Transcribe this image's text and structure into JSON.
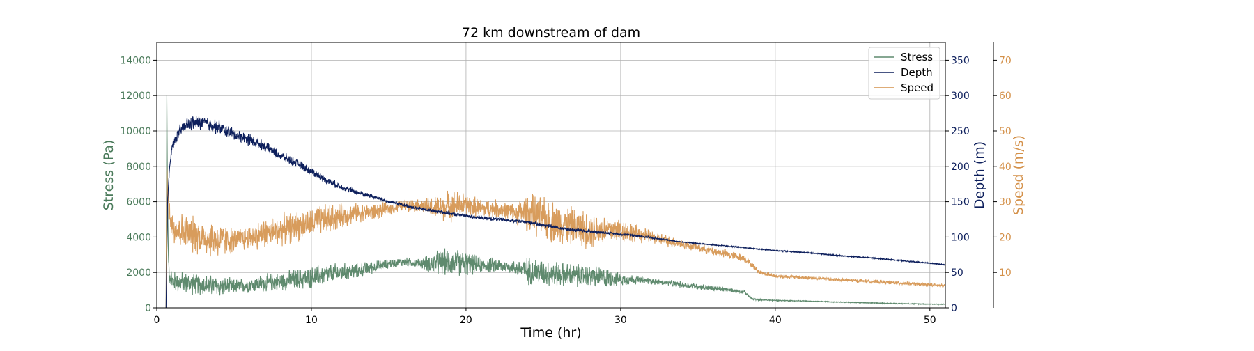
{
  "chart_data": {
    "type": "line",
    "title": "72 km downstream of dam",
    "xlabel": "Time (hr)",
    "xlim": [
      0,
      51
    ],
    "x_ticks": [
      0,
      10,
      20,
      30,
      40,
      50
    ],
    "grid": true,
    "legend_position": "top-right",
    "axes": {
      "stress": {
        "label": "Stress (Pa)",
        "side": "left",
        "ylim": [
          0,
          15000
        ],
        "ticks": [
          0,
          2000,
          4000,
          6000,
          8000,
          10000,
          12000,
          14000
        ],
        "color": "#4a7a5a"
      },
      "depth": {
        "label": "Depth (m)",
        "side": "right",
        "ylim": [
          0,
          375
        ],
        "ticks": [
          0,
          50,
          100,
          150,
          200,
          250,
          300,
          350
        ],
        "color": "#0d1f5c"
      },
      "speed": {
        "label": "Speed (m/s)",
        "side": "right-outer",
        "ylim": [
          0,
          75
        ],
        "ticks": [
          10,
          20,
          30,
          40,
          50,
          60,
          70
        ],
        "color": "#d4914a"
      }
    },
    "series": [
      {
        "name": "Stress",
        "axis": "stress",
        "color": "#5f8a6e",
        "x": [
          0,
          0.6,
          0.65,
          0.7,
          0.75,
          0.8,
          1,
          2,
          3,
          4,
          5,
          6,
          7,
          8,
          9,
          10,
          11,
          12,
          13,
          14,
          15,
          16,
          17,
          18,
          19,
          20,
          21,
          22,
          23,
          24,
          25,
          26,
          27,
          28,
          29,
          30,
          31,
          32,
          33,
          34,
          35,
          36,
          37,
          38,
          38.5,
          39,
          40,
          42,
          44,
          46,
          48,
          50,
          51
        ],
        "y": [
          0,
          0,
          12000,
          6000,
          3000,
          2000,
          1500,
          1400,
          1300,
          1200,
          1200,
          1300,
          1400,
          1500,
          1600,
          1700,
          1900,
          2000,
          2100,
          2300,
          2500,
          2600,
          2500,
          2500,
          2600,
          2500,
          2400,
          2400,
          2300,
          2100,
          2000,
          1900,
          1800,
          1800,
          1700,
          1600,
          1600,
          1500,
          1400,
          1300,
          1200,
          1100,
          1000,
          900,
          500,
          450,
          420,
          380,
          330,
          280,
          240,
          210,
          200
        ],
        "noise": [
          0,
          0,
          0,
          0,
          0,
          700,
          700,
          700,
          700,
          700,
          500,
          500,
          600,
          600,
          700,
          700,
          700,
          600,
          500,
          400,
          300,
          300,
          300,
          800,
          900,
          800,
          500,
          500,
          400,
          900,
          900,
          800,
          800,
          700,
          700,
          400,
          300,
          200,
          200,
          200,
          200,
          200,
          150,
          100,
          60,
          50,
          40,
          30,
          30,
          30,
          30,
          30,
          30
        ]
      },
      {
        "name": "Depth",
        "axis": "depth",
        "color": "#0d1f5c",
        "x": [
          0,
          0.6,
          0.7,
          0.8,
          1,
          1.5,
          2,
          3,
          4,
          5,
          6,
          7,
          8,
          9,
          10,
          11,
          12,
          13,
          14,
          15,
          16,
          17,
          18,
          19,
          20,
          21,
          22,
          23,
          24,
          25,
          26,
          27,
          28,
          29,
          30,
          31,
          32,
          33,
          34,
          35,
          36,
          37,
          38,
          40,
          42,
          44,
          46,
          48,
          50,
          51
        ],
        "y": [
          0,
          0,
          150,
          190,
          230,
          250,
          260,
          262,
          255,
          245,
          238,
          228,
          215,
          205,
          193,
          180,
          170,
          163,
          157,
          150,
          145,
          140,
          137,
          133,
          130,
          127,
          125,
          123,
          121,
          117,
          113,
          110,
          108,
          106,
          104,
          102,
          99,
          96,
          93,
          91,
          89,
          87,
          85,
          81,
          78,
          74,
          71,
          67,
          63,
          61
        ],
        "noise": [
          0,
          0,
          0,
          5,
          8,
          10,
          12,
          12,
          12,
          10,
          10,
          8,
          8,
          7,
          7,
          6,
          5,
          4,
          4,
          3,
          3,
          3,
          3,
          3,
          3,
          3,
          3,
          3,
          3,
          3,
          3,
          3,
          3,
          2,
          2,
          2,
          2,
          1,
          1,
          1,
          1,
          1,
          1,
          1,
          1,
          1,
          1,
          1,
          1,
          1
        ]
      },
      {
        "name": "Speed",
        "axis": "speed",
        "color": "#d4914a",
        "x": [
          0,
          0.6,
          0.65,
          0.7,
          0.8,
          1,
          2,
          3,
          4,
          5,
          6,
          7,
          8,
          9,
          10,
          11,
          12,
          13,
          14,
          15,
          16,
          17,
          18,
          19,
          20,
          21,
          22,
          23,
          24,
          25,
          26,
          27,
          28,
          29,
          30,
          31,
          32,
          33,
          34,
          35,
          36,
          37,
          38,
          38.5,
          39,
          40,
          42,
          44,
          46,
          48,
          50,
          51
        ],
        "y": [
          0,
          0,
          40,
          33,
          28,
          23,
          21,
          20,
          19,
          19,
          20,
          21,
          22,
          23,
          24,
          25,
          26,
          27,
          27,
          28,
          29,
          29,
          28,
          29,
          29,
          28,
          28,
          27,
          27,
          25,
          24,
          23,
          22,
          22,
          22,
          21,
          20,
          19,
          18,
          17,
          16,
          15,
          14,
          12,
          10,
          9,
          8.5,
          8,
          7.5,
          7,
          6.5,
          6.2
        ],
        "noise": [
          0,
          0,
          0,
          4,
          5,
          6,
          6,
          6,
          6,
          4,
          4,
          5,
          5,
          5,
          5,
          5,
          4,
          3,
          3,
          2,
          2,
          2,
          4,
          5,
          4,
          3,
          3,
          3,
          6,
          7,
          7,
          6,
          6,
          5,
          4,
          3,
          2,
          2,
          1.5,
          1.5,
          1.5,
          1.5,
          1.2,
          1,
          0.8,
          0.7,
          0.6,
          0.6,
          0.6,
          0.6,
          0.6,
          0.6
        ]
      }
    ]
  }
}
